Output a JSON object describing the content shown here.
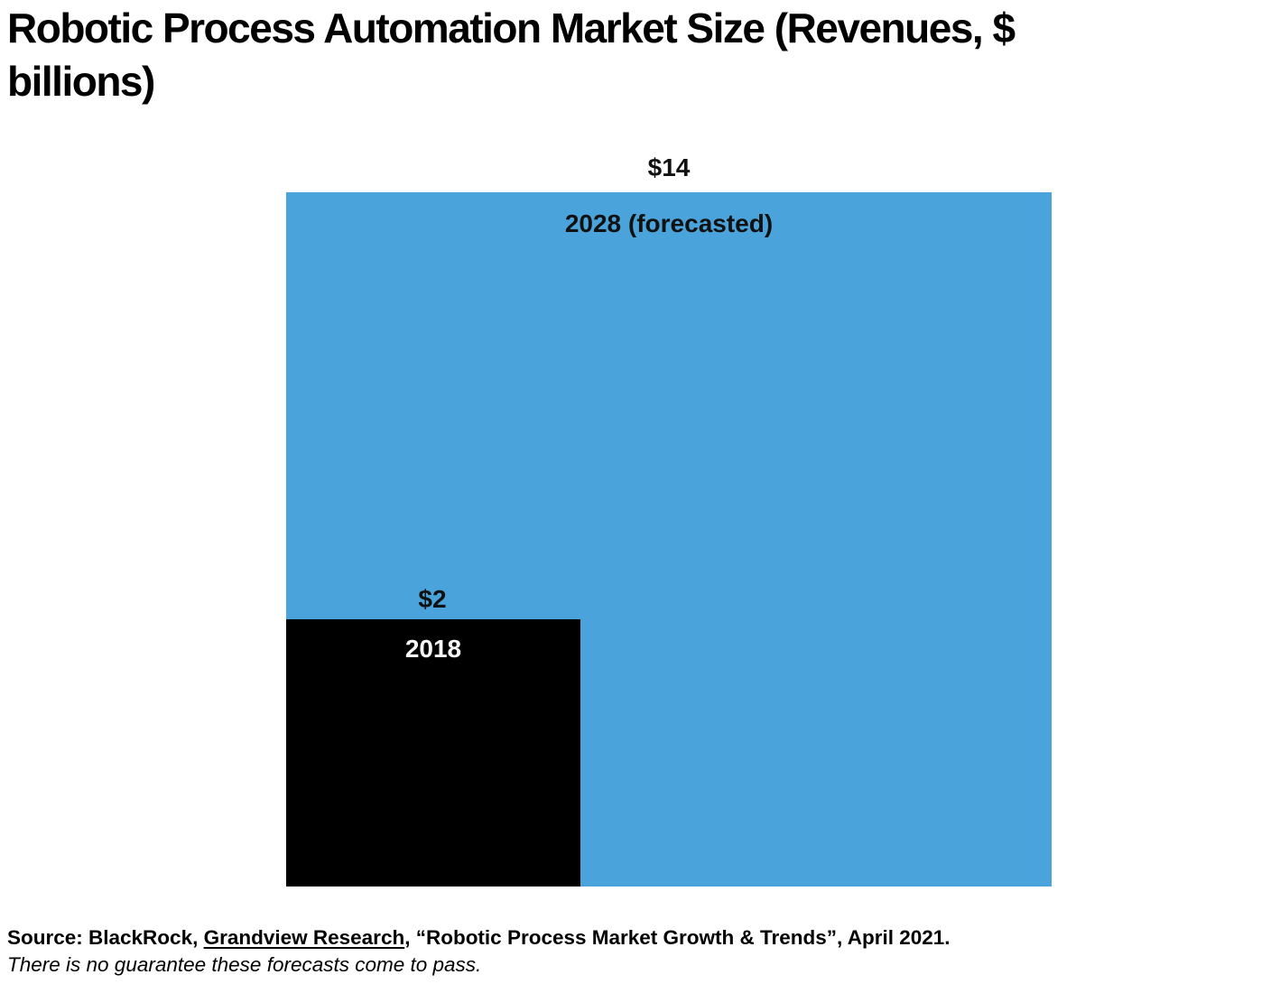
{
  "title": {
    "text": "Robotic Process Automation Market Size (Revenues, $\nbillions)"
  },
  "chart": {
    "forecast_square": {
      "value": "$14",
      "label": "2028 (forecasted)",
      "color": "#4AA4DB"
    },
    "base_square": {
      "value": "$2",
      "label": "2018",
      "color": "#000000"
    }
  },
  "footer": {
    "source_prefix": "Source: BlackRock, ",
    "source_link": "Grandview Research",
    "source_suffix": ", “Robotic Process Market Growth & Trends”, April 2021.",
    "disclaimer": "There is no guarantee these forecasts come to pass."
  },
  "chart_data": {
    "type": "area",
    "subtype": "nested-proportional-squares",
    "title": "Robotic Process Automation Market Size (Revenues, $ billions)",
    "unit": "$ billions",
    "categories": [
      "2018",
      "2028 (forecasted)"
    ],
    "values": [
      2,
      14
    ],
    "data_labels": [
      "$2",
      "$14"
    ],
    "colors": [
      "#000000",
      "#4AA4DB"
    ],
    "legend_position": "none",
    "grid": false,
    "layout_hint": "squares sized proportionally to value area, small square anchored to bottom-left corner of large square"
  }
}
